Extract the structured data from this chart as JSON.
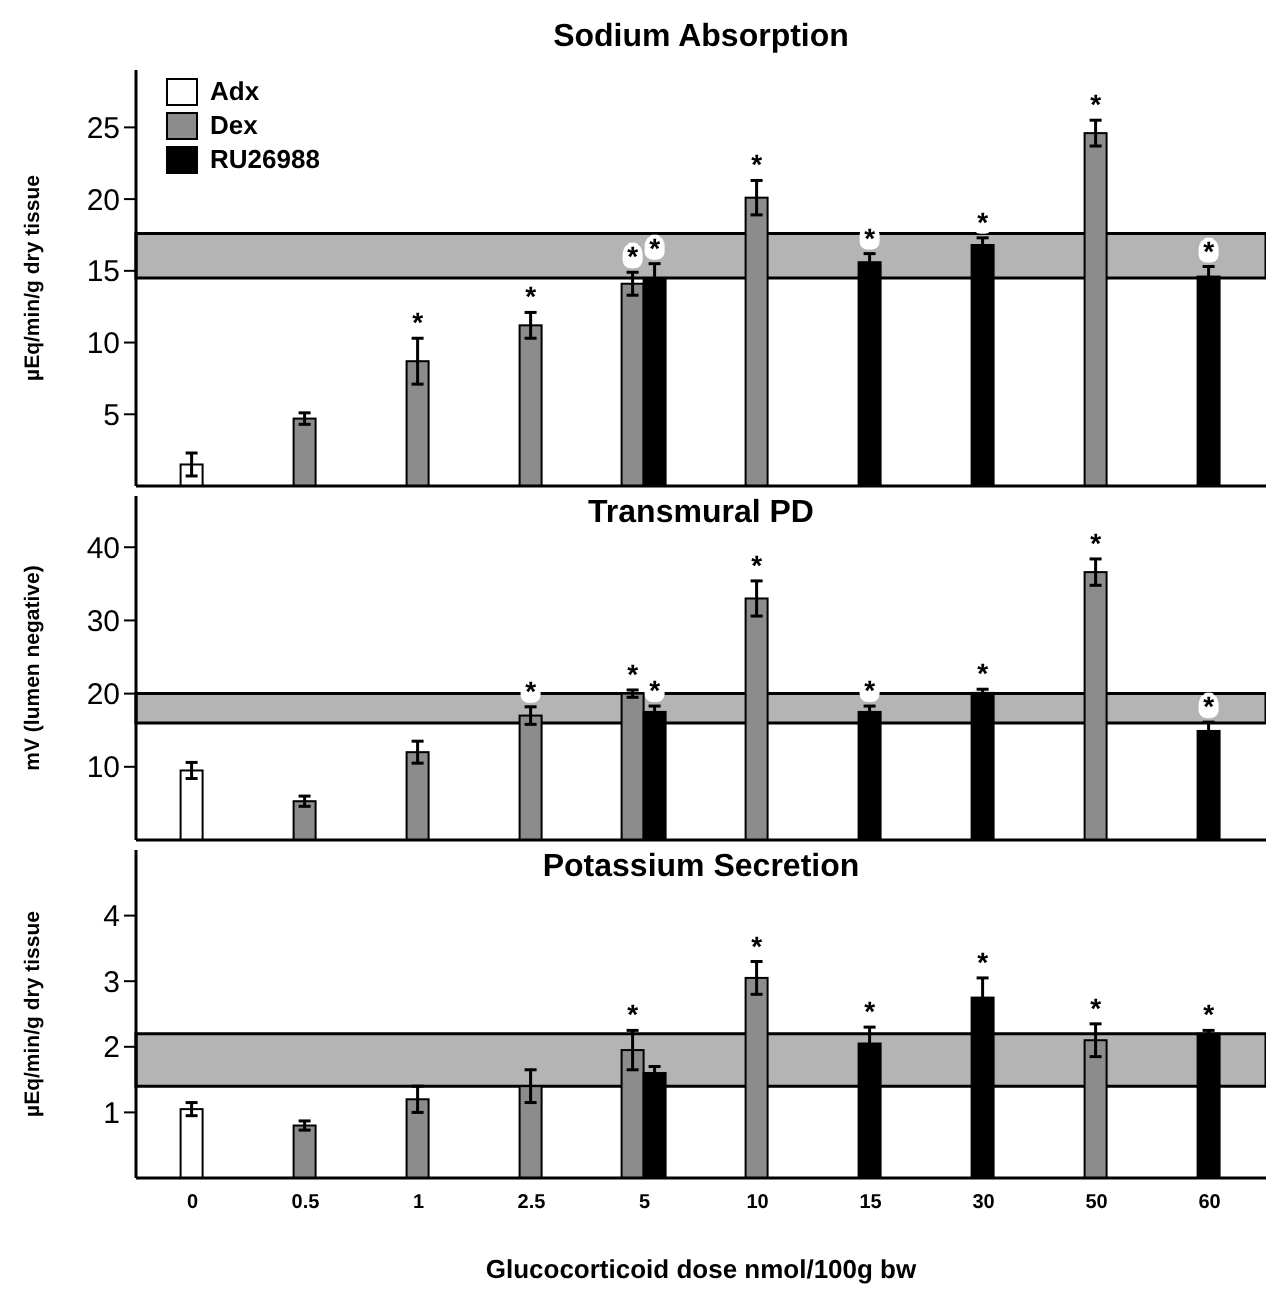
{
  "chart_data": [
    {
      "type": "bar",
      "title": "Sodium Absorption",
      "ylabel": "µEq/min/g dry tissue",
      "categories": [
        "0",
        "0.5",
        "1",
        "2.5",
        "5",
        "10",
        "15",
        "30",
        "50",
        "60"
      ],
      "series": [
        {
          "name": "Adx",
          "color": "#ffffff",
          "values": [
            1.5,
            null,
            null,
            null,
            null,
            null,
            null,
            null,
            null,
            null
          ],
          "errors": [
            0.8,
            null,
            null,
            null,
            null,
            null,
            null,
            null,
            null,
            null
          ]
        },
        {
          "name": "Dex",
          "color": "#8c8c8c",
          "values": [
            null,
            4.7,
            8.7,
            11.2,
            14.1,
            20.1,
            null,
            null,
            24.6,
            null
          ],
          "errors": [
            null,
            0.4,
            1.6,
            0.9,
            0.8,
            1.2,
            null,
            null,
            0.9,
            null
          ],
          "value_labels": [
            null,
            null,
            "*",
            "*",
            "*",
            "*",
            null,
            null,
            "*",
            null
          ]
        },
        {
          "name": "RU26988",
          "color": "#000000",
          "values": [
            null,
            null,
            null,
            null,
            14.5,
            null,
            15.6,
            16.8,
            null,
            14.6
          ],
          "errors": [
            null,
            null,
            null,
            null,
            1.0,
            null,
            0.6,
            0.5,
            null,
            0.7
          ],
          "value_labels": [
            null,
            null,
            null,
            null,
            "*",
            null,
            "*",
            "*",
            null,
            "*"
          ]
        }
      ],
      "ylim": [
        0,
        29
      ],
      "yticks": [
        5,
        10,
        15,
        20,
        25
      ],
      "bands": [
        {
          "axis": "y",
          "from": 14.5,
          "to": 17.6,
          "color": "#b4b4b4"
        }
      ],
      "legend": "top left",
      "tick_labels": "y"
    },
    {
      "type": "bar",
      "title": "Transmural PD",
      "ylabel": "mV (lumen negative)",
      "categories": [
        "0",
        "0.5",
        "1",
        "2.5",
        "5",
        "10",
        "15",
        "30",
        "50",
        "60"
      ],
      "series": [
        {
          "color": "#ffffff",
          "values": [
            9.5,
            null,
            null,
            null,
            null,
            null,
            null,
            null,
            null,
            null
          ],
          "errors": [
            1.1,
            null,
            null,
            null,
            null,
            null,
            null,
            null,
            null,
            null
          ]
        },
        {
          "color": "#8c8c8c",
          "values": [
            null,
            5.3,
            12.0,
            17.0,
            20.0,
            33.0,
            null,
            null,
            36.6,
            null
          ],
          "errors": [
            null,
            0.7,
            1.5,
            1.2,
            0.5,
            2.4,
            null,
            null,
            1.8,
            null
          ],
          "value_labels": [
            null,
            null,
            null,
            "*",
            "*",
            "*",
            null,
            null,
            "*",
            null
          ]
        },
        {
          "color": "#000000",
          "values": [
            null,
            null,
            null,
            null,
            17.5,
            null,
            17.5,
            20.1,
            null,
            14.9
          ],
          "errors": [
            null,
            null,
            null,
            null,
            0.8,
            null,
            0.8,
            0.5,
            null,
            1.2
          ],
          "value_labels": [
            null,
            null,
            null,
            null,
            "*",
            null,
            "*",
            "*",
            null,
            "*"
          ]
        }
      ],
      "ylim": [
        0,
        47
      ],
      "yticks": [
        10,
        20,
        30,
        40
      ],
      "bands": [
        {
          "axis": "y",
          "from": 16,
          "to": 20,
          "color": "#b4b4b4"
        }
      ],
      "tick_labels": "y"
    },
    {
      "type": "bar",
      "title": "Potassium Secretion",
      "xlabel": "Glucocorticoid dose nmol/100g bw",
      "ylabel": "µEq/min/g dry tissue",
      "categories": [
        "0",
        "0.5",
        "1",
        "2.5",
        "5",
        "10",
        "15",
        "30",
        "50",
        "60"
      ],
      "series": [
        {
          "color": "#ffffff",
          "values": [
            1.05,
            null,
            null,
            null,
            null,
            null,
            null,
            null,
            null,
            null
          ],
          "errors": [
            0.1,
            null,
            null,
            null,
            null,
            null,
            null,
            null,
            null,
            null
          ]
        },
        {
          "color": "#8c8c8c",
          "values": [
            null,
            0.8,
            1.2,
            1.4,
            1.95,
            3.05,
            null,
            null,
            2.1,
            null
          ],
          "errors": [
            null,
            0.07,
            0.2,
            0.25,
            0.3,
            0.25,
            null,
            null,
            0.25,
            null
          ],
          "value_labels": [
            null,
            null,
            null,
            null,
            "*",
            "*",
            null,
            null,
            "*",
            null
          ]
        },
        {
          "color": "#000000",
          "values": [
            null,
            null,
            null,
            null,
            1.6,
            null,
            2.05,
            2.75,
            null,
            2.2
          ],
          "errors": [
            null,
            null,
            null,
            null,
            0.1,
            null,
            0.25,
            0.3,
            null,
            0.05
          ],
          "value_labels": [
            null,
            null,
            null,
            null,
            null,
            null,
            "*",
            "*",
            null,
            "*"
          ]
        }
      ],
      "ylim": [
        0,
        5
      ],
      "yticks": [
        1,
        2,
        3,
        4
      ],
      "bands": [
        {
          "axis": "y",
          "from": 1.4,
          "to": 2.2,
          "color": "#b4b4b4"
        }
      ]
    }
  ]
}
